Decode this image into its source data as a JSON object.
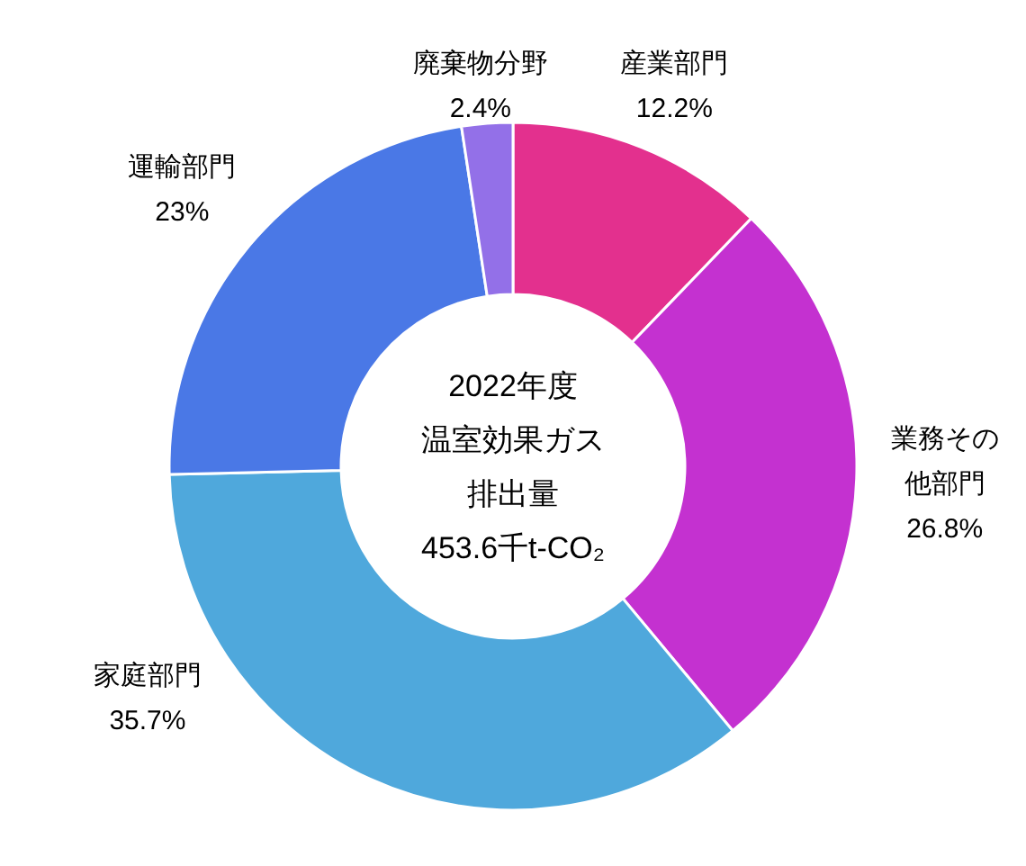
{
  "chart_data": {
    "type": "donut",
    "title": "2022年度温室効果ガス排出量",
    "subtitle": "453.6千t-CO₂",
    "categories": [
      "産業部門",
      "業務その他部門",
      "家庭部門",
      "運輸部門",
      "廃棄物分野"
    ],
    "values": [
      12.2,
      26.8,
      35.7,
      23,
      2.4
    ],
    "value_labels": [
      "12.2%",
      "26.8%",
      "35.7%",
      "23%",
      "2.4%"
    ],
    "colors": [
      "#e3308e",
      "#c431d0",
      "#4fa8dc",
      "#4a78e6",
      "#9370e8"
    ]
  }
}
